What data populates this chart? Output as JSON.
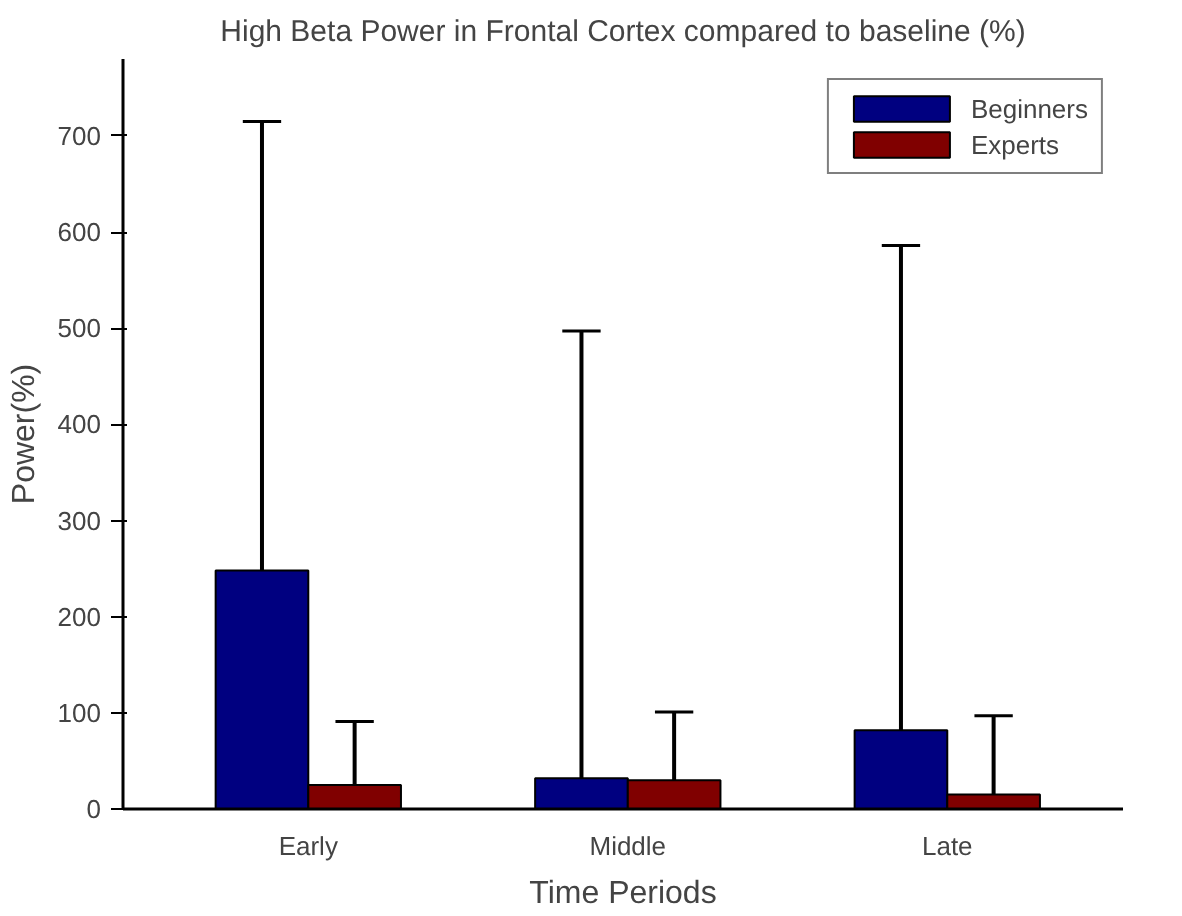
{
  "chart_data": {
    "type": "bar",
    "title": "High Beta Power in Frontal Cortex compared to baseline (%)",
    "xlabel": "Time Periods",
    "ylabel": "Power(%)",
    "categories": [
      "Early",
      "Middle",
      "Late"
    ],
    "series": [
      {
        "name": "Beginners",
        "color": "#000080",
        "values": [
          248,
          32,
          82
        ],
        "errors": [
          [
            248,
            715
          ],
          [
            32,
            497
          ],
          [
            82,
            586
          ]
        ]
      },
      {
        "name": "Experts",
        "color": "#800000",
        "values": [
          25,
          30,
          15
        ],
        "errors": [
          [
            25,
            91
          ],
          [
            30,
            101
          ],
          [
            15,
            97
          ]
        ]
      }
    ],
    "ylim": [
      0,
      780
    ],
    "yticks": [
      0,
      100,
      200,
      300,
      400,
      500,
      600,
      700
    ],
    "grid": false,
    "legend": "top right"
  }
}
